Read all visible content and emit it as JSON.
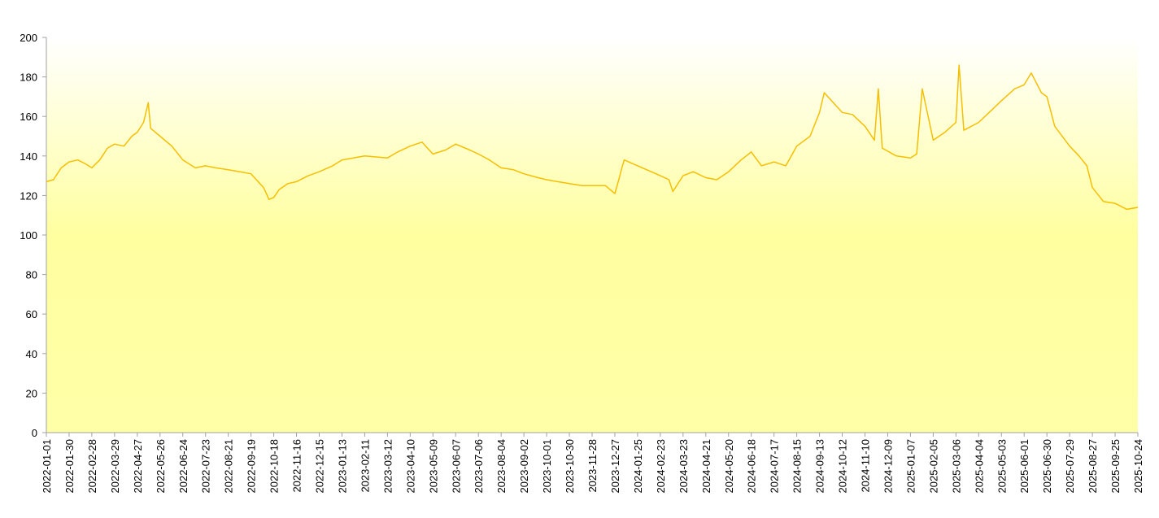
{
  "chart_data": {
    "type": "line",
    "x": [
      "2022-01-01",
      "2022-01-10",
      "2022-01-20",
      "2022-01-30",
      "2022-02-10",
      "2022-02-20",
      "2022-02-28",
      "2022-03-10",
      "2022-03-20",
      "2022-03-29",
      "2022-04-10",
      "2022-04-20",
      "2022-04-27",
      "2022-05-05",
      "2022-05-11",
      "2022-05-14",
      "2022-05-26",
      "2022-06-10",
      "2022-06-24",
      "2022-07-10",
      "2022-07-23",
      "2022-08-05",
      "2022-08-21",
      "2022-09-05",
      "2022-09-19",
      "2022-10-05",
      "2022-10-12",
      "2022-10-18",
      "2022-10-25",
      "2022-11-05",
      "2022-11-16",
      "2022-12-01",
      "2022-12-15",
      "2023-01-01",
      "2023-01-13",
      "2023-02-11",
      "2023-03-12",
      "2023-03-25",
      "2023-04-10",
      "2023-04-25",
      "2023-05-09",
      "2023-05-25",
      "2023-06-07",
      "2023-06-25",
      "2023-07-06",
      "2023-07-20",
      "2023-08-04",
      "2023-08-20",
      "2023-09-02",
      "2023-09-20",
      "2023-10-01",
      "2023-10-15",
      "2023-10-30",
      "2023-11-15",
      "2023-11-28",
      "2023-12-15",
      "2023-12-27",
      "2024-01-01",
      "2024-01-05",
      "2024-01-08",
      "2024-02-23",
      "2024-03-05",
      "2024-03-10",
      "2024-03-23",
      "2024-04-05",
      "2024-04-21",
      "2024-05-05",
      "2024-05-20",
      "2024-06-05",
      "2024-06-18",
      "2024-07-01",
      "2024-07-17",
      "2024-08-01",
      "2024-08-15",
      "2024-09-01",
      "2024-09-13",
      "2024-09-19",
      "2024-10-12",
      "2024-10-25",
      "2024-11-10",
      "2024-11-22",
      "2024-11-27",
      "2024-12-02",
      "2024-12-20",
      "2025-01-07",
      "2025-01-15",
      "2025-01-22",
      "2025-02-05",
      "2025-02-20",
      "2025-03-06",
      "2025-03-10",
      "2025-03-16",
      "2025-04-04",
      "2025-04-20",
      "2025-05-03",
      "2025-05-20",
      "2025-06-01",
      "2025-06-10",
      "2025-06-23",
      "2025-06-30",
      "2025-07-10",
      "2025-07-29",
      "2025-08-10",
      "2025-08-20",
      "2025-08-27",
      "2025-09-10",
      "2025-09-25",
      "2025-10-10",
      "2025-10-24"
    ],
    "series": [
      {
        "color": "#f5bf00",
        "values": [
          127,
          128,
          134,
          137,
          138,
          136,
          134,
          138,
          144,
          146,
          145,
          150,
          152,
          157,
          167,
          154,
          150,
          145,
          138,
          134,
          135,
          134,
          133,
          132,
          131,
          124,
          118,
          119,
          123,
          126,
          127,
          130,
          132,
          135,
          138,
          140,
          139,
          142,
          145,
          147,
          141,
          143,
          146,
          143,
          141,
          138,
          134,
          133,
          131,
          129,
          128,
          127,
          126,
          125,
          125,
          125,
          121,
          128,
          134,
          138,
          130,
          128,
          122,
          130,
          132,
          129,
          128,
          132,
          138,
          142,
          135,
          137,
          135,
          145,
          150,
          162,
          172,
          162,
          161,
          155,
          148,
          174,
          144,
          140,
          139,
          141,
          174,
          148,
          152,
          157,
          186,
          153,
          157,
          163,
          168,
          174,
          176,
          182,
          172,
          170,
          155,
          145,
          140,
          135,
          124,
          117,
          116,
          113,
          114
        ]
      }
    ],
    "xlim": [
      "2022-01-01",
      "2025-10-24"
    ],
    "xticks": [
      "2022-01-01",
      "2022-01-30",
      "2022-02-28",
      "2022-03-29",
      "2022-04-27",
      "2022-05-26",
      "2022-06-24",
      "2022-07-23",
      "2022-08-21",
      "2022-09-19",
      "2022-10-18",
      "2022-11-16",
      "2022-12-15",
      "2023-01-13",
      "2023-02-11",
      "2023-03-12",
      "2023-04-10",
      "2023-05-09",
      "2023-06-07",
      "2023-07-06",
      "2023-08-04",
      "2023-09-02",
      "2023-10-01",
      "2023-10-30",
      "2023-11-28",
      "2023-12-27",
      "2024-01-25",
      "2024-02-23",
      "2024-03-23",
      "2024-04-21",
      "2024-05-20",
      "2024-06-18",
      "2024-07-17",
      "2024-08-15",
      "2024-09-13",
      "2024-10-12",
      "2024-11-10",
      "2024-12-09",
      "2025-01-07",
      "2025-02-05",
      "2025-03-06",
      "2025-04-04",
      "2025-05-03",
      "2025-06-01",
      "2025-06-30",
      "2025-07-29",
      "2025-08-27",
      "2025-09-25",
      "2025-10-24"
    ],
    "ylim": [
      0,
      200
    ],
    "yticks": [
      0,
      20,
      40,
      60,
      80,
      100,
      120,
      140,
      160,
      180,
      200
    ]
  }
}
